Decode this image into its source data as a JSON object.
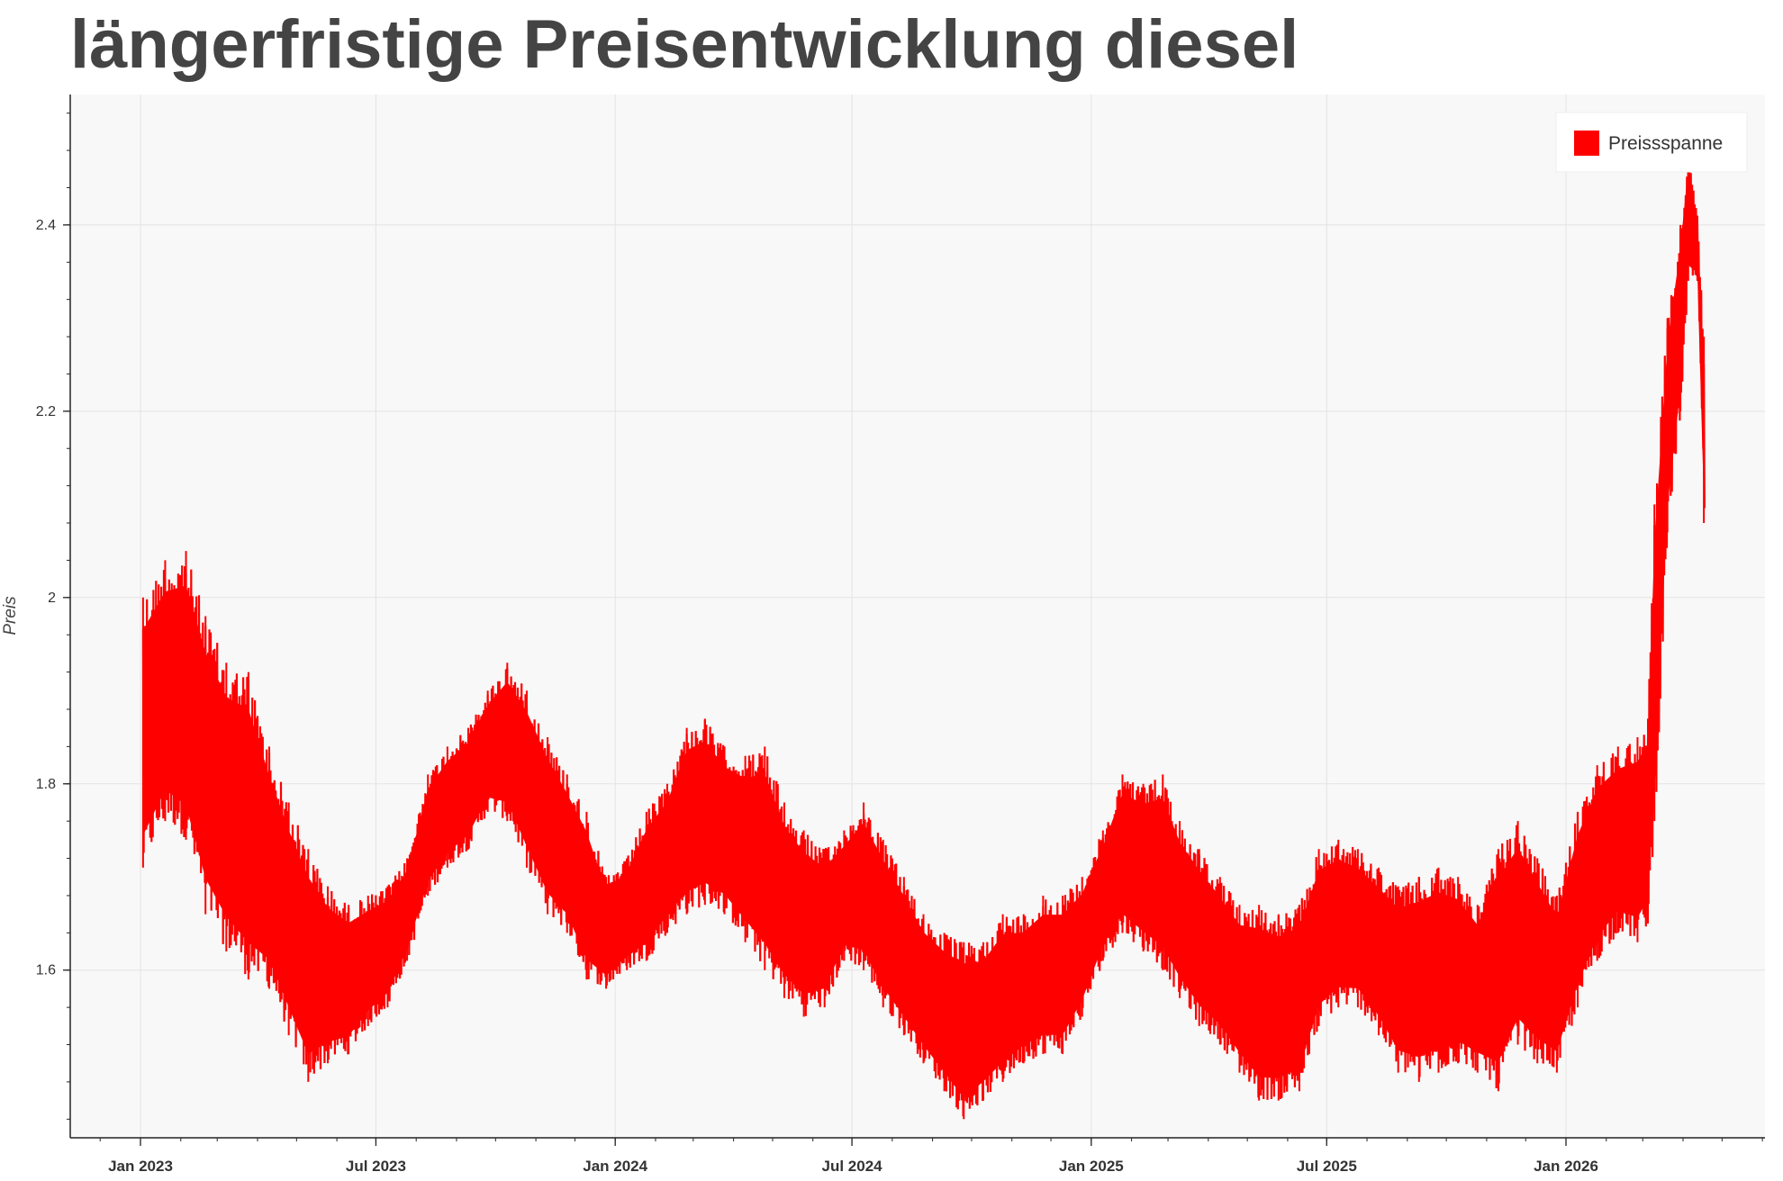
{
  "chart_data": {
    "type": "area",
    "title": "längerfristige Preisentwicklung diesel",
    "xlabel": "",
    "ylabel": "Preis",
    "x_tick_labels": [
      "Jan 2023",
      "Jul 2023",
      "Jan 2024",
      "Jul 2024",
      "Jan 2025",
      "Jul 2025",
      "Jan 2026"
    ],
    "x_ticks": [
      "2023-01",
      "2023-07",
      "2024-01",
      "2024-07",
      "2025-01",
      "2025-07",
      "2026-01"
    ],
    "y_tick_labels": [
      "1.6",
      "1.8",
      "2",
      "2.2",
      "2.4"
    ],
    "y_ticks": [
      1.6,
      1.8,
      2.0,
      2.2,
      2.4
    ],
    "xlim": [
      "2022-11-08",
      "2026-06-03"
    ],
    "ylim": [
      1.42,
      2.54
    ],
    "grid": true,
    "legend": {
      "position": "top-right",
      "entries": [
        {
          "name": "Preissspanne",
          "color": "#ff0000"
        }
      ]
    },
    "series": [
      {
        "name": "Preissspanne",
        "color": "#ff0000",
        "x": [
          "2023-01-03",
          "2023-01-20",
          "2023-02-05",
          "2023-02-20",
          "2023-03-08",
          "2023-03-25",
          "2023-04-10",
          "2023-04-25",
          "2023-05-10",
          "2023-05-25",
          "2023-06-10",
          "2023-06-25",
          "2023-07-10",
          "2023-07-25",
          "2023-08-10",
          "2023-08-25",
          "2023-09-10",
          "2023-09-25",
          "2023-10-10",
          "2023-10-25",
          "2023-11-10",
          "2023-11-25",
          "2023-12-10",
          "2023-12-25",
          "2024-01-10",
          "2024-01-25",
          "2024-02-10",
          "2024-02-25",
          "2024-03-10",
          "2024-03-25",
          "2024-04-10",
          "2024-04-25",
          "2024-05-10",
          "2024-05-25",
          "2024-06-10",
          "2024-06-25",
          "2024-07-10",
          "2024-07-25",
          "2024-08-10",
          "2024-08-25",
          "2024-09-10",
          "2024-09-25",
          "2024-10-10",
          "2024-10-25",
          "2024-11-10",
          "2024-11-25",
          "2024-12-10",
          "2024-12-25",
          "2025-01-10",
          "2025-01-25",
          "2025-02-10",
          "2025-02-25",
          "2025-03-10",
          "2025-03-25",
          "2025-04-10",
          "2025-04-25",
          "2025-05-10",
          "2025-05-25",
          "2025-06-10",
          "2025-06-25",
          "2025-07-10",
          "2025-07-25",
          "2025-08-10",
          "2025-08-25",
          "2025-09-10",
          "2025-09-25",
          "2025-10-10",
          "2025-10-25",
          "2025-11-10",
          "2025-11-25",
          "2025-12-10",
          "2025-12-25",
          "2026-01-10",
          "2026-01-25",
          "2026-02-10",
          "2026-02-25",
          "2026-03-05",
          "2026-03-10",
          "2026-03-20",
          "2026-03-30",
          "2026-04-05",
          "2026-04-12",
          "2026-04-17"
        ],
        "low": [
          1.71,
          1.76,
          1.74,
          1.66,
          1.62,
          1.59,
          1.58,
          1.53,
          1.48,
          1.5,
          1.51,
          1.54,
          1.56,
          1.61,
          1.68,
          1.71,
          1.73,
          1.77,
          1.76,
          1.71,
          1.66,
          1.64,
          1.59,
          1.58,
          1.6,
          1.61,
          1.64,
          1.66,
          1.67,
          1.66,
          1.63,
          1.6,
          1.57,
          1.55,
          1.56,
          1.61,
          1.6,
          1.56,
          1.53,
          1.5,
          1.47,
          1.44,
          1.46,
          1.48,
          1.5,
          1.51,
          1.51,
          1.55,
          1.61,
          1.64,
          1.62,
          1.6,
          1.57,
          1.54,
          1.52,
          1.49,
          1.46,
          1.46,
          1.47,
          1.54,
          1.56,
          1.56,
          1.53,
          1.49,
          1.48,
          1.49,
          1.5,
          1.49,
          1.47,
          1.52,
          1.5,
          1.49,
          1.56,
          1.61,
          1.64,
          1.63,
          1.65,
          1.76,
          2.07,
          2.2,
          2.34,
          2.34,
          2.08
        ],
        "high": [
          2.0,
          2.04,
          2.05,
          1.98,
          1.93,
          1.92,
          1.84,
          1.78,
          1.73,
          1.69,
          1.67,
          1.68,
          1.69,
          1.72,
          1.81,
          1.84,
          1.86,
          1.9,
          1.93,
          1.9,
          1.85,
          1.81,
          1.77,
          1.7,
          1.72,
          1.77,
          1.8,
          1.86,
          1.87,
          1.84,
          1.83,
          1.84,
          1.78,
          1.75,
          1.73,
          1.75,
          1.78,
          1.74,
          1.7,
          1.66,
          1.64,
          1.63,
          1.63,
          1.66,
          1.66,
          1.68,
          1.68,
          1.7,
          1.75,
          1.81,
          1.8,
          1.81,
          1.76,
          1.73,
          1.7,
          1.67,
          1.67,
          1.66,
          1.67,
          1.73,
          1.74,
          1.73,
          1.71,
          1.69,
          1.7,
          1.71,
          1.7,
          1.67,
          1.73,
          1.76,
          1.72,
          1.68,
          1.77,
          1.82,
          1.84,
          1.85,
          1.87,
          2.1,
          2.3,
          2.4,
          2.48,
          2.41,
          2.28
        ]
      }
    ]
  }
}
